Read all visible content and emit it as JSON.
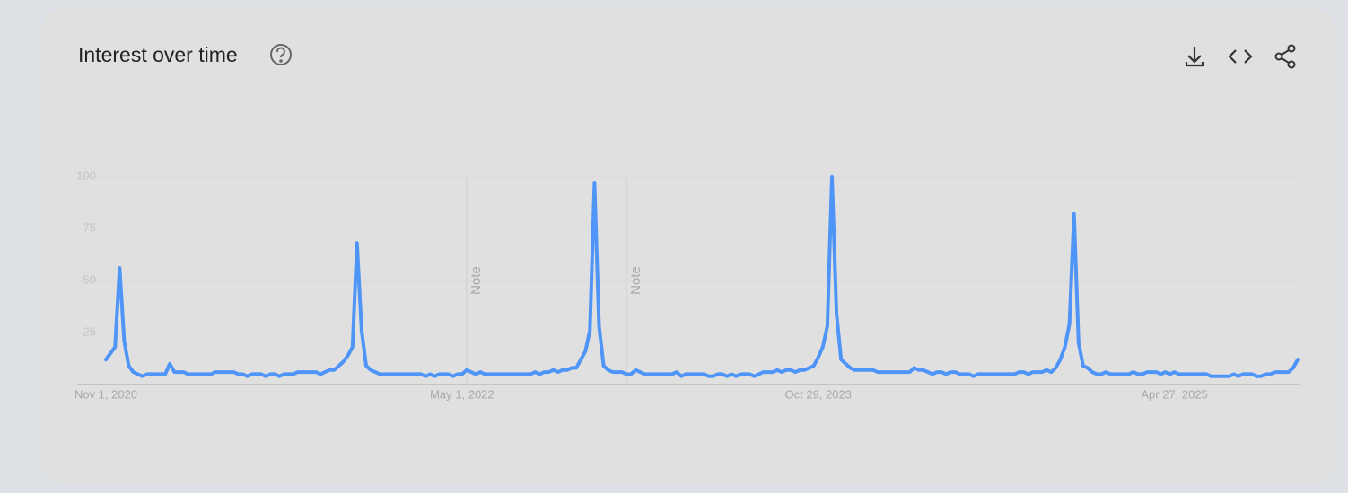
{
  "header": {
    "title": "Interest over time"
  },
  "chart_data": {
    "type": "line",
    "color": "#4e95f7",
    "categories": [
      "Nov 1, 2020",
      null,
      null,
      null,
      null,
      null,
      null,
      null,
      null,
      null,
      null,
      null,
      null,
      null,
      null,
      null,
      null,
      null,
      null,
      null,
      null,
      null,
      null,
      null,
      null,
      null,
      null,
      null,
      null,
      null,
      null,
      null,
      null,
      null,
      null,
      null,
      null,
      null,
      null,
      null,
      null,
      null,
      null,
      null,
      null,
      null,
      null,
      null,
      null,
      null,
      null,
      null,
      null,
      null,
      null,
      null,
      null,
      null,
      null,
      null,
      null,
      null,
      null,
      null,
      null,
      null,
      null,
      null,
      null,
      null,
      null,
      null,
      null,
      null,
      null,
      null,
      null,
      null,
      "May 1, 2022",
      null,
      null,
      null,
      null,
      null,
      null,
      null,
      null,
      null,
      null,
      null,
      null,
      null,
      null,
      null,
      null,
      null,
      null,
      null,
      null,
      null,
      null,
      null,
      null,
      null,
      null,
      null,
      null,
      null,
      null,
      null,
      null,
      null,
      null,
      null,
      null,
      null,
      null,
      null,
      null,
      null,
      null,
      null,
      null,
      null,
      null,
      null,
      null,
      null,
      null,
      null,
      null,
      null,
      null,
      null,
      null,
      null,
      null,
      null,
      null,
      null,
      null,
      null,
      null,
      null,
      null,
      null,
      null,
      null,
      null,
      null,
      null,
      null,
      null,
      null,
      null,
      null,
      "Oct 29, 2023",
      null,
      null,
      null,
      null,
      null,
      null,
      null,
      null,
      null,
      null,
      null,
      null,
      null,
      null,
      null,
      null,
      null,
      null,
      null,
      null,
      null,
      null,
      null,
      null,
      null,
      null,
      null,
      null,
      null,
      null,
      null,
      null,
      null,
      null,
      null,
      null,
      null,
      null,
      null,
      null,
      null,
      null,
      null,
      null,
      null,
      null,
      null,
      null,
      null,
      null,
      null,
      null,
      null,
      null,
      null,
      null,
      null,
      null,
      null,
      null,
      null,
      null,
      null,
      null,
      null,
      null,
      null,
      null,
      null,
      null,
      null,
      null,
      null,
      null,
      null,
      null,
      null,
      "Apr 27, 2025",
      null,
      null,
      null,
      null,
      null,
      null,
      null,
      null,
      null,
      null,
      null,
      null,
      null,
      null,
      null,
      null,
      null,
      null,
      null,
      null,
      null,
      null,
      null,
      null,
      null,
      null,
      null
    ],
    "values": [
      12,
      15,
      18,
      56,
      21,
      9,
      6,
      5,
      4,
      5,
      5,
      5,
      5,
      5,
      10,
      6,
      6,
      6,
      5,
      5,
      5,
      5,
      5,
      5,
      6,
      6,
      6,
      6,
      6,
      5,
      5,
      4,
      5,
      5,
      5,
      4,
      5,
      5,
      4,
      5,
      5,
      5,
      6,
      6,
      6,
      6,
      6,
      5,
      6,
      7,
      7,
      9,
      11,
      14,
      18,
      68,
      26,
      9,
      7,
      6,
      5,
      5,
      5,
      5,
      5,
      5,
      5,
      5,
      5,
      5,
      4,
      5,
      4,
      5,
      5,
      5,
      4,
      5,
      5,
      7,
      6,
      5,
      6,
      5,
      5,
      5,
      5,
      5,
      5,
      5,
      5,
      5,
      5,
      5,
      6,
      5,
      6,
      6,
      7,
      6,
      7,
      7,
      8,
      8,
      12,
      16,
      26,
      97,
      28,
      9,
      7,
      6,
      6,
      6,
      5,
      5,
      7,
      6,
      5,
      5,
      5,
      5,
      5,
      5,
      5,
      6,
      4,
      5,
      5,
      5,
      5,
      5,
      4,
      4,
      5,
      5,
      4,
      5,
      4,
      5,
      5,
      5,
      4,
      5,
      6,
      6,
      6,
      7,
      6,
      7,
      7,
      6,
      7,
      7,
      8,
      9,
      13,
      18,
      28,
      100,
      34,
      12,
      10,
      8,
      7,
      7,
      7,
      7,
      7,
      6,
      6,
      6,
      6,
      6,
      6,
      6,
      6,
      8,
      7,
      7,
      6,
      5,
      6,
      6,
      5,
      6,
      6,
      5,
      5,
      5,
      4,
      5,
      5,
      5,
      5,
      5,
      5,
      5,
      5,
      5,
      6,
      6,
      5,
      6,
      6,
      6,
      7,
      6,
      8,
      12,
      18,
      29,
      82,
      20,
      9,
      8,
      6,
      5,
      5,
      6,
      5,
      5,
      5,
      5,
      5,
      6,
      5,
      5,
      6,
      6,
      6,
      5,
      6,
      5,
      6,
      5,
      5,
      5,
      5,
      5,
      5,
      5,
      4,
      4,
      4,
      4,
      4,
      5,
      4,
      5,
      5,
      5,
      4,
      4,
      5,
      5,
      6,
      6,
      6,
      6,
      8,
      12
    ],
    "ylim": [
      0,
      100
    ],
    "yticks": [
      25,
      50,
      75,
      100
    ],
    "grid": true,
    "annotations": [
      {
        "text": "Note",
        "index": 79
      },
      {
        "text": "Note",
        "index": 114
      }
    ]
  }
}
